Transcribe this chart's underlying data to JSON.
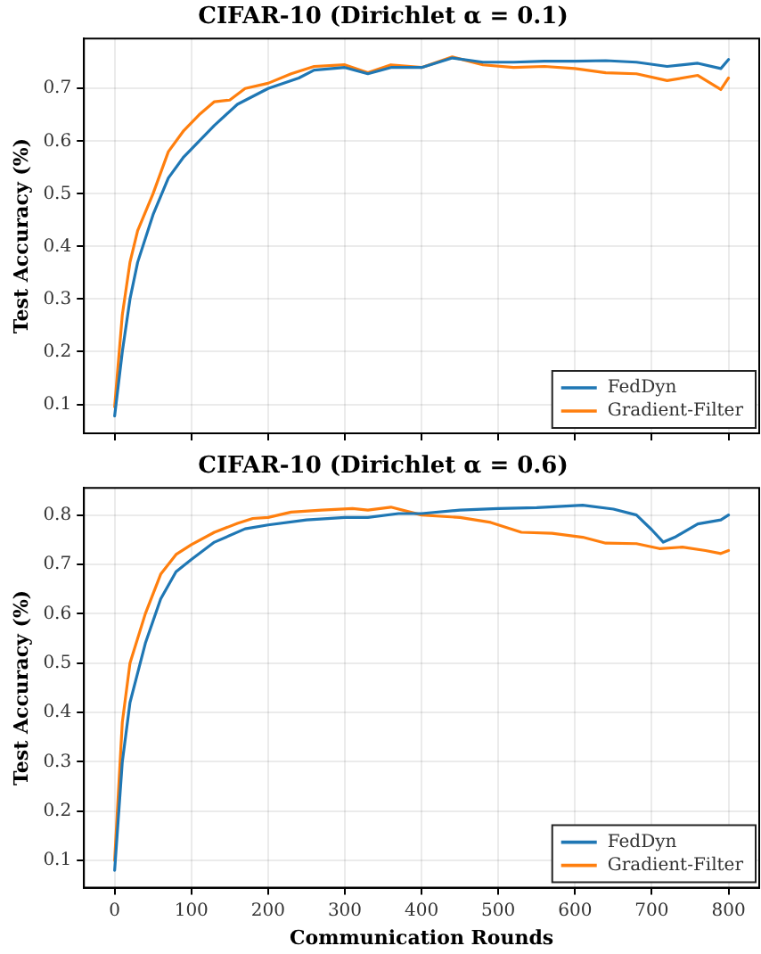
{
  "chart_data": [
    {
      "type": "line",
      "title": "CIFAR-10 (Dirichlet α = 0.1)",
      "ylabel": "Test Accuracy (%)",
      "xlim": [
        -40,
        840
      ],
      "xticks": [
        0,
        100,
        200,
        300,
        400,
        500,
        600,
        700,
        800
      ],
      "ylim": [
        0.045,
        0.795
      ],
      "yticks": [
        0.1,
        0.2,
        0.3,
        0.4,
        0.5,
        0.6,
        0.7
      ],
      "tick_labels": "y",
      "grid": true,
      "legend": "bottom right",
      "marker": "none",
      "line_style": "solid",
      "series": [
        {
          "name": "FedDyn",
          "color": "#1f77b4",
          "x": [
            0,
            10,
            20,
            30,
            50,
            70,
            90,
            110,
            130,
            160,
            200,
            240,
            260,
            300,
            330,
            360,
            400,
            440,
            480,
            520,
            560,
            600,
            640,
            680,
            720,
            760,
            790,
            800
          ],
          "values": [
            0.078,
            0.2,
            0.3,
            0.37,
            0.46,
            0.53,
            0.57,
            0.6,
            0.63,
            0.67,
            0.7,
            0.72,
            0.735,
            0.74,
            0.728,
            0.74,
            0.74,
            0.758,
            0.75,
            0.75,
            0.752,
            0.752,
            0.753,
            0.75,
            0.742,
            0.748,
            0.738,
            0.755
          ]
        },
        {
          "name": "Gradient-Filter",
          "color": "#ff7f0e",
          "x": [
            0,
            10,
            20,
            30,
            50,
            70,
            90,
            110,
            130,
            150,
            170,
            200,
            230,
            260,
            300,
            330,
            360,
            400,
            440,
            480,
            520,
            560,
            600,
            640,
            680,
            720,
            760,
            790,
            800
          ],
          "values": [
            0.095,
            0.27,
            0.37,
            0.43,
            0.5,
            0.58,
            0.62,
            0.65,
            0.675,
            0.678,
            0.7,
            0.71,
            0.728,
            0.742,
            0.745,
            0.73,
            0.745,
            0.74,
            0.76,
            0.745,
            0.74,
            0.742,
            0.738,
            0.73,
            0.728,
            0.715,
            0.725,
            0.698,
            0.72
          ]
        }
      ]
    },
    {
      "type": "line",
      "title": "CIFAR-10 (Dirichlet α = 0.6)",
      "xlabel": "Communication Rounds",
      "ylabel": "Test Accuracy (%)",
      "xlim": [
        -40,
        840
      ],
      "xticks": [
        0,
        100,
        200,
        300,
        400,
        500,
        600,
        700,
        800
      ],
      "ylim": [
        0.045,
        0.855
      ],
      "yticks": [
        0.1,
        0.2,
        0.3,
        0.4,
        0.5,
        0.6,
        0.7,
        0.8
      ],
      "grid": true,
      "legend": "bottom right",
      "marker": "none",
      "line_style": "solid",
      "series": [
        {
          "name": "FedDyn",
          "color": "#1f77b4",
          "x": [
            0,
            10,
            20,
            40,
            60,
            80,
            100,
            130,
            170,
            200,
            250,
            300,
            330,
            370,
            400,
            450,
            500,
            550,
            610,
            650,
            680,
            700,
            715,
            730,
            760,
            790,
            800
          ],
          "values": [
            0.08,
            0.3,
            0.42,
            0.54,
            0.63,
            0.685,
            0.71,
            0.745,
            0.772,
            0.78,
            0.79,
            0.795,
            0.795,
            0.803,
            0.803,
            0.81,
            0.813,
            0.815,
            0.82,
            0.812,
            0.8,
            0.77,
            0.745,
            0.755,
            0.782,
            0.79,
            0.8
          ]
        },
        {
          "name": "Gradient-Filter",
          "color": "#ff7f0e",
          "x": [
            0,
            10,
            20,
            40,
            60,
            80,
            100,
            130,
            160,
            180,
            200,
            230,
            270,
            310,
            330,
            360,
            400,
            450,
            490,
            530,
            570,
            610,
            640,
            680,
            710,
            740,
            770,
            790,
            800
          ],
          "values": [
            0.1,
            0.38,
            0.5,
            0.6,
            0.68,
            0.72,
            0.74,
            0.765,
            0.783,
            0.793,
            0.795,
            0.806,
            0.81,
            0.813,
            0.81,
            0.816,
            0.8,
            0.795,
            0.785,
            0.765,
            0.763,
            0.755,
            0.743,
            0.742,
            0.732,
            0.735,
            0.728,
            0.722,
            0.728
          ]
        }
      ]
    }
  ]
}
